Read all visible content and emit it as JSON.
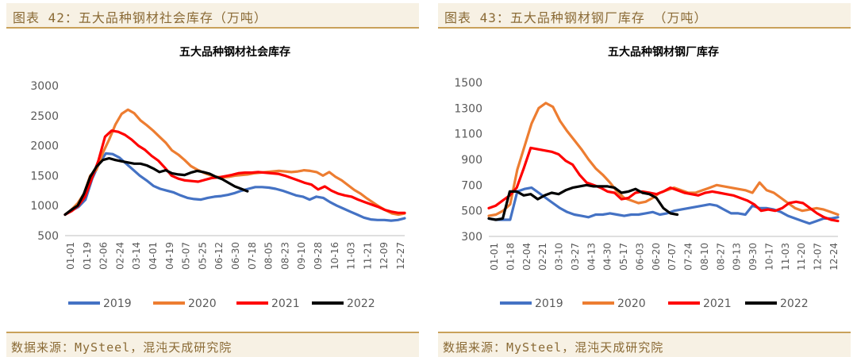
{
  "panels": [
    {
      "header": "图表 42：五大品种钢材社会库存（万吨）",
      "source": "数据来源：MySteel，混沌天成研究院"
    },
    {
      "header": "图表 43：五大品种钢材钢厂库存 （万吨）",
      "source": "数据来源：MySteel，混沌天成研究院"
    }
  ],
  "series_colors": {
    "2019": "#4472c4",
    "2020": "#ed7d31",
    "2021": "#ff0000",
    "2022": "#000000"
  },
  "chart_data": [
    {
      "type": "line",
      "title": "五大品种钢材社会库存",
      "xlabel": "",
      "ylabel": "",
      "x_tick_labels": [
        "01-01",
        "01-19",
        "02-06",
        "02-24",
        "03-14",
        "04-01",
        "04-19",
        "05-07",
        "05-25",
        "06-12",
        "06-30",
        "07-18",
        "08-05",
        "08-23",
        "09-10",
        "09-28",
        "10-16",
        "11-03",
        "11-21",
        "12-09",
        "12-27"
      ],
      "ylim": [
        500,
        3000
      ],
      "y_ticks": [
        500,
        1000,
        1500,
        2000,
        2500,
        3000
      ],
      "grid": false,
      "legend": "bottom",
      "series": [
        {
          "name": "2019",
          "values": [
            850,
            920,
            980,
            1100,
            1450,
            1700,
            1870,
            1860,
            1800,
            1700,
            1600,
            1500,
            1420,
            1330,
            1280,
            1250,
            1220,
            1170,
            1130,
            1110,
            1100,
            1130,
            1150,
            1160,
            1180,
            1210,
            1250,
            1280,
            1310,
            1310,
            1300,
            1280,
            1250,
            1210,
            1170,
            1150,
            1100,
            1150,
            1130,
            1060,
            1000,
            950,
            900,
            850,
            800,
            770,
            760,
            760,
            750,
            760,
            790
          ]
        },
        {
          "name": "2020",
          "values": [
            850,
            930,
            1040,
            1200,
            1500,
            1600,
            1880,
            2100,
            2350,
            2530,
            2600,
            2540,
            2420,
            2340,
            2250,
            2150,
            2050,
            1920,
            1850,
            1760,
            1660,
            1600,
            1550,
            1510,
            1480,
            1470,
            1480,
            1500,
            1510,
            1520,
            1540,
            1550,
            1560,
            1570,
            1580,
            1570,
            1560,
            1570,
            1590,
            1580,
            1560,
            1500,
            1560,
            1480,
            1420,
            1340,
            1260,
            1200,
            1120,
            1050,
            980,
            920,
            870,
            850,
            870
          ]
        },
        {
          "name": "2021",
          "values": [
            850,
            910,
            1000,
            1150,
            1450,
            1750,
            2150,
            2250,
            2230,
            2180,
            2100,
            2000,
            1930,
            1830,
            1750,
            1630,
            1500,
            1450,
            1420,
            1410,
            1400,
            1430,
            1460,
            1470,
            1490,
            1510,
            1540,
            1550,
            1550,
            1560,
            1550,
            1540,
            1530,
            1500,
            1460,
            1420,
            1380,
            1350,
            1270,
            1320,
            1250,
            1200,
            1170,
            1150,
            1100,
            1060,
            1020,
            980,
            930,
            900,
            880,
            880
          ]
        },
        {
          "name": "2022",
          "values": [
            850,
            930,
            1000,
            1200,
            1480,
            1650,
            1760,
            1790,
            1760,
            1740,
            1720,
            1700,
            1700,
            1670,
            1620,
            1560,
            1590,
            1540,
            1520,
            1510,
            1550,
            1580,
            1560,
            1530,
            1480,
            1440,
            1380,
            1320,
            1280,
            1240
          ]
        }
      ]
    },
    {
      "type": "line",
      "title": "五大品种钢材钢厂库存",
      "xlabel": "",
      "ylabel": "",
      "x_tick_labels": [
        "01-01",
        "01-18",
        "02-04",
        "02-21",
        "03-10",
        "03-27",
        "04-13",
        "04-30",
        "05-17",
        "06-03",
        "06-20",
        "07-07",
        "07-24",
        "08-10",
        "08-27",
        "09-13",
        "09-30",
        "10-17",
        "11-03",
        "11-20",
        "12-07",
        "12-24"
      ],
      "ylim": [
        300,
        1500
      ],
      "y_ticks": [
        300,
        500,
        700,
        900,
        1100,
        1300,
        1500
      ],
      "grid": false,
      "legend": "bottom",
      "series": [
        {
          "name": "2019",
          "values": [
            440,
            430,
            430,
            430,
            650,
            670,
            680,
            640,
            600,
            560,
            520,
            490,
            470,
            460,
            450,
            470,
            470,
            480,
            470,
            460,
            470,
            470,
            480,
            490,
            470,
            480,
            500,
            510,
            520,
            530,
            540,
            550,
            540,
            510,
            480,
            480,
            470,
            540,
            520,
            520,
            510,
            490,
            460,
            440,
            420,
            400,
            420,
            440,
            440,
            450
          ]
        },
        {
          "name": "2020",
          "values": [
            460,
            470,
            500,
            550,
            820,
            1000,
            1180,
            1300,
            1340,
            1310,
            1200,
            1120,
            1050,
            980,
            900,
            830,
            780,
            720,
            650,
            600,
            580,
            560,
            570,
            600,
            640,
            660,
            680,
            660,
            640,
            640,
            660,
            680,
            700,
            690,
            680,
            670,
            660,
            640,
            720,
            660,
            640,
            600,
            560,
            520,
            500,
            510,
            520,
            510,
            490,
            470
          ]
        },
        {
          "name": "2021",
          "values": [
            520,
            540,
            580,
            620,
            680,
            830,
            990,
            980,
            970,
            960,
            940,
            890,
            860,
            780,
            720,
            700,
            680,
            650,
            640,
            590,
            600,
            640,
            650,
            640,
            630,
            650,
            680,
            660,
            640,
            630,
            620,
            640,
            650,
            640,
            630,
            620,
            600,
            580,
            550,
            500,
            510,
            500,
            520,
            560,
            570,
            560,
            520,
            480,
            450,
            430,
            420
          ]
        },
        {
          "name": "2022",
          "values": [
            440,
            430,
            440,
            650,
            650,
            620,
            630,
            590,
            620,
            640,
            630,
            660,
            680,
            690,
            700,
            690,
            690,
            690,
            680,
            640,
            650,
            670,
            640,
            630,
            600,
            520,
            480,
            470
          ]
        }
      ]
    }
  ]
}
